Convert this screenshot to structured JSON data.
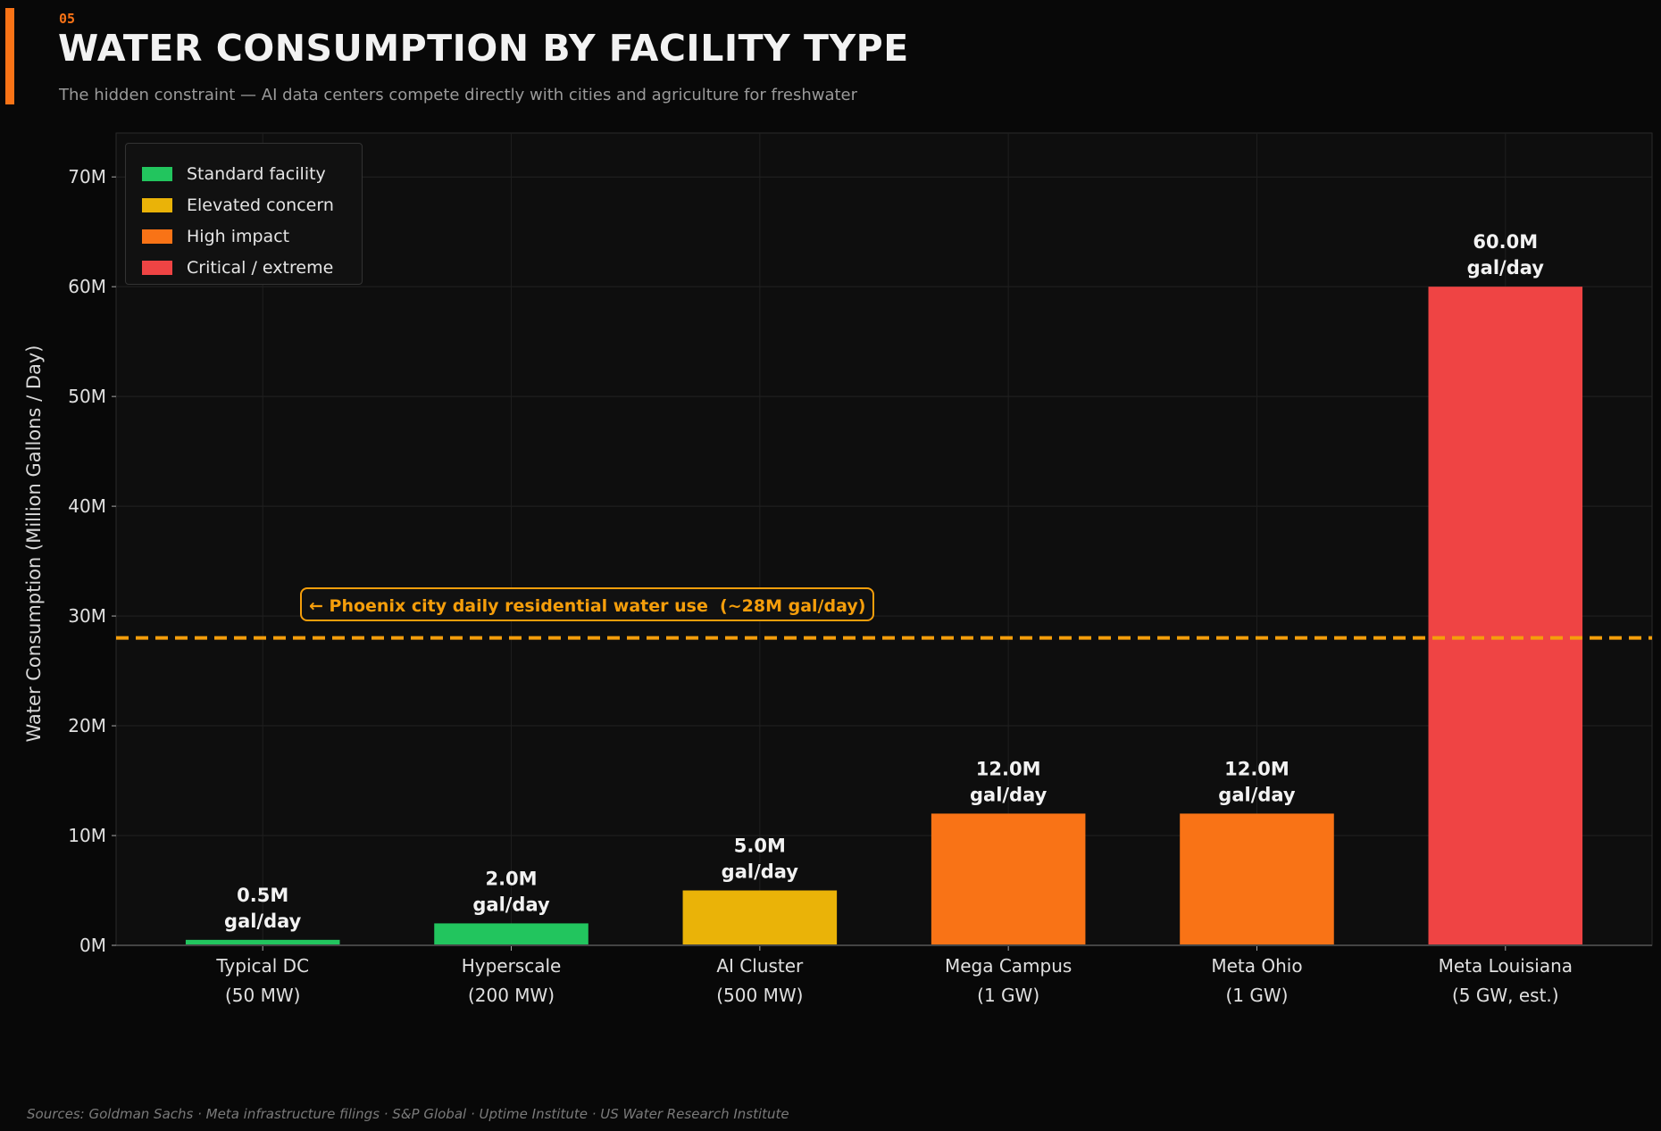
{
  "header": {
    "section_number": "05",
    "title": "WATER CONSUMPTION BY FACILITY TYPE",
    "subtitle": "The hidden constraint — AI data centers compete directly with cities and agriculture for freshwater",
    "accent_color": "#f97316"
  },
  "footer": {
    "sources": "Sources: Goldman Sachs · Meta infrastructure filings · S&P Global · Uptime Institute · US Water Research Institute"
  },
  "chart_data": {
    "type": "bar",
    "title": "",
    "xlabel": "",
    "ylabel": "Water Consumption (Million Gallons / Day)",
    "ylim": [
      0,
      74
    ],
    "yticks": [
      0,
      10,
      20,
      30,
      40,
      50,
      60,
      70
    ],
    "ytick_labels": [
      "0M",
      "10M",
      "20M",
      "30M",
      "40M",
      "50M",
      "60M",
      "70M"
    ],
    "grid": true,
    "categories": [
      [
        "Typical DC",
        "(50 MW)"
      ],
      [
        "Hyperscale",
        "(200 MW)"
      ],
      [
        "AI Cluster",
        "(500 MW)"
      ],
      [
        "Mega Campus",
        "(1 GW)"
      ],
      [
        "Meta Ohio",
        "(1 GW)"
      ],
      [
        "Meta Louisiana",
        "(5 GW, est.)"
      ]
    ],
    "values": [
      0.5,
      2.0,
      5.0,
      12.0,
      12.0,
      60.0
    ],
    "value_labels": [
      [
        "0.5M",
        "gal/day"
      ],
      [
        "2.0M",
        "gal/day"
      ],
      [
        "5.0M",
        "gal/day"
      ],
      [
        "12.0M",
        "gal/day"
      ],
      [
        "12.0M",
        "gal/day"
      ],
      [
        "60.0M",
        "gal/day"
      ]
    ],
    "bar_classes": [
      0,
      0,
      1,
      2,
      2,
      3
    ],
    "legend": {
      "position": "top-left",
      "entries": [
        {
          "label": "Standard facility",
          "color": "#22c55e"
        },
        {
          "label": "Elevated concern",
          "color": "#eab308"
        },
        {
          "label": "High impact",
          "color": "#f97316"
        },
        {
          "label": "Critical / extreme",
          "color": "#ef4444"
        }
      ]
    },
    "reference_line": {
      "value": 28,
      "color": "#f59e0b",
      "style": "dashed",
      "label": "← Phoenix city daily residential water use  (~28M gal/day)"
    }
  }
}
